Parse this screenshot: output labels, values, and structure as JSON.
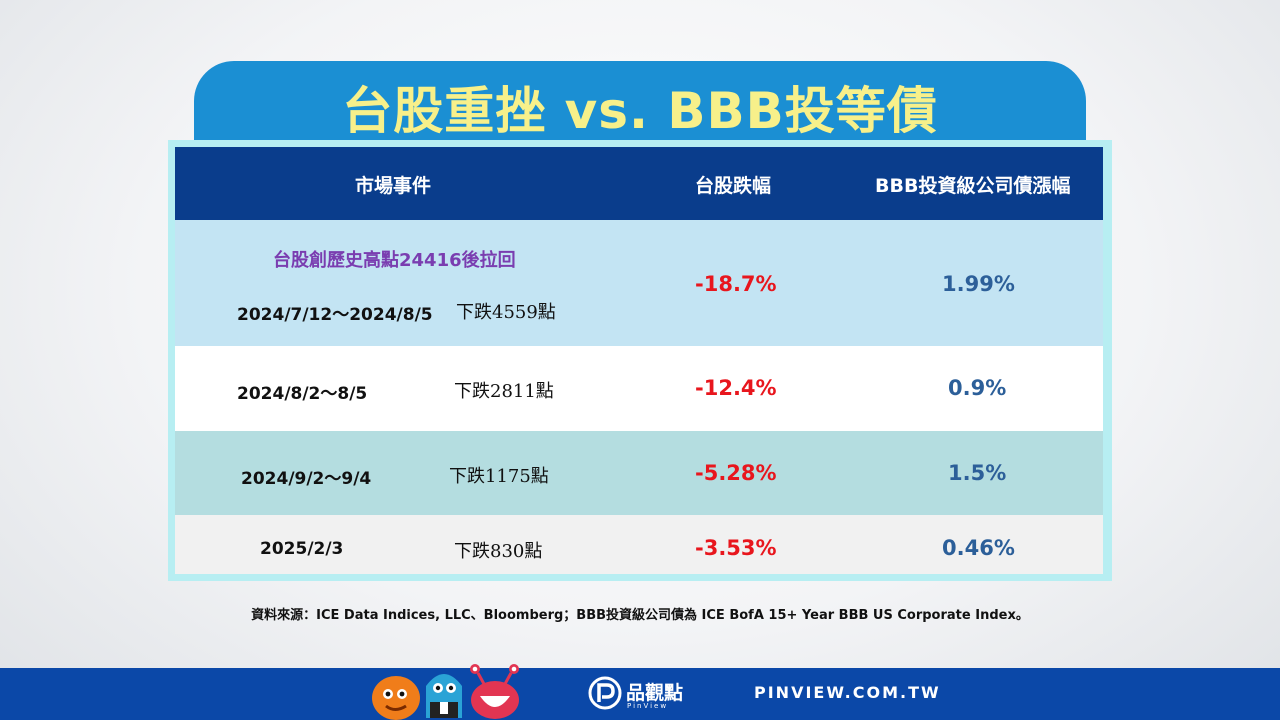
{
  "title": "台股重挫  vs. BBB投等債",
  "table": {
    "headers": [
      "市場事件",
      "台股跌幅",
      "BBB投資級公司債漲幅"
    ],
    "rows": [
      {
        "event": "台股創歷史高點24416後拉回",
        "date": "2024/7/12～2024/8/5",
        "drop": "下跌4559點",
        "tw": "-18.7%",
        "bbb": "1.99%"
      },
      {
        "date": "2024/8/2～8/5",
        "drop": "下跌2811點",
        "tw": "-12.4%",
        "bbb": "0.9%"
      },
      {
        "date": "2024/9/2～9/4",
        "drop": "下跌1175點",
        "tw": "-5.28%",
        "bbb": "1.5%"
      },
      {
        "date": "2025/2/3",
        "drop": "下跌830點",
        "tw": "-3.53%",
        "bbb": "0.46%"
      }
    ]
  },
  "source": "資料來源：ICE Data Indices, LLC、Bloomberg；BBB投資級公司債為 ICE BofA 15+ Year BBB US Corporate Index。",
  "footer": {
    "logo_text": "品觀點",
    "logo_sub": "PinView",
    "site": "PINVIEW.COM.TW"
  },
  "colors": {
    "header_bg": "#0a3d8c",
    "title_bg": "#1b8fd3",
    "title_text": "#f7f08a",
    "negative": "#e8161d",
    "positive": "#2c5f99",
    "footer_bg": "#0b48a8"
  },
  "icons": [
    "mascot-orange-icon",
    "mascot-blue-icon",
    "mascot-red-icon",
    "pinview-logo-icon"
  ]
}
